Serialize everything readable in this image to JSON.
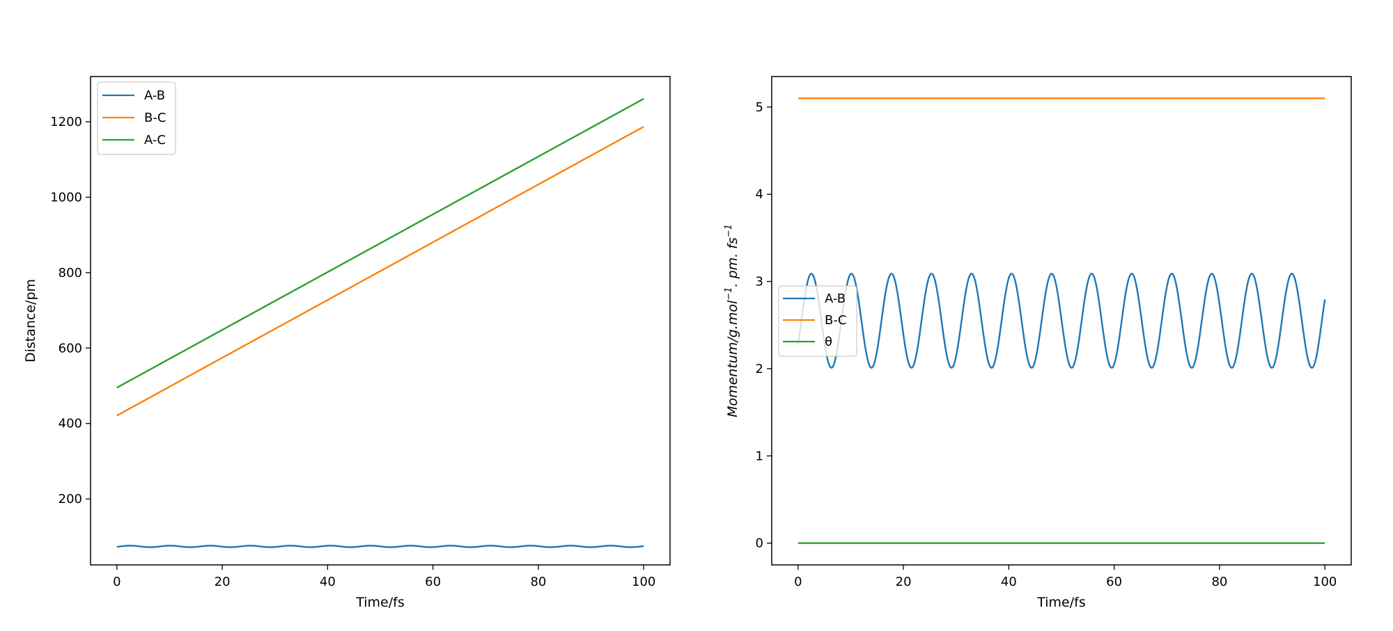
{
  "chart_data": [
    {
      "type": "line",
      "xlabel": "Time/fs",
      "ylabel": "Distance/pm",
      "xlim": [
        -5,
        105
      ],
      "ylim": [
        25,
        1320
      ],
      "xticks": [
        0,
        20,
        40,
        60,
        80,
        100
      ],
      "yticks": [
        200,
        400,
        600,
        800,
        1000,
        1200
      ],
      "legend_position": "top-left",
      "grid": false,
      "series": [
        {
          "name": "A-B",
          "color": "#1f77b4",
          "model": {
            "kind": "oscillate",
            "mean": 74,
            "amp": 2,
            "period": 7.6
          },
          "x": [
            0,
            100
          ],
          "y": [
            74,
            74
          ]
        },
        {
          "name": "B-C",
          "color": "#ff7f0e",
          "model": {
            "kind": "linear"
          },
          "x": [
            0,
            100
          ],
          "y": [
            421,
            1187
          ]
        },
        {
          "name": "A-C",
          "color": "#2ca02c",
          "model": {
            "kind": "linear"
          },
          "x": [
            0,
            100
          ],
          "y": [
            495,
            1261
          ]
        }
      ]
    },
    {
      "type": "line",
      "xlabel": "Time/fs",
      "ylabel_parts": [
        "Momentum/g.mol",
        "−1",
        ". pm. fs",
        "−1"
      ],
      "xlim": [
        -5,
        105
      ],
      "ylim": [
        -0.25,
        5.35
      ],
      "xticks": [
        0,
        20,
        40,
        60,
        80,
        100
      ],
      "yticks": [
        0,
        1,
        2,
        3,
        4,
        5
      ],
      "legend_position": "center-left",
      "grid": false,
      "series": [
        {
          "name": "A-B",
          "color": "#1f77b4",
          "model": {
            "kind": "oscillate",
            "mean": 2.55,
            "amp": 0.54,
            "period": 7.6,
            "phase_start": 0
          },
          "x": [
            0,
            100
          ],
          "y": [
            2.5,
            2.02
          ]
        },
        {
          "name": "B-C",
          "color": "#ff7f0e",
          "model": {
            "kind": "linear"
          },
          "x": [
            0,
            100
          ],
          "y": [
            5.1,
            5.1
          ]
        },
        {
          "name": "θ",
          "color": "#2ca02c",
          "model": {
            "kind": "linear"
          },
          "x": [
            0,
            100
          ],
          "y": [
            0,
            0
          ]
        }
      ]
    }
  ]
}
